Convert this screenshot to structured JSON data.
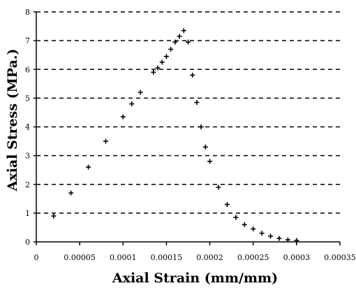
{
  "chart_data": {
    "type": "scatter",
    "title": "",
    "xlabel": "Axial Strain (mm/mm)",
    "ylabel": "Axial Stress (MPa.)",
    "xlim": [
      0,
      0.00035
    ],
    "ylim": [
      0,
      8
    ],
    "x_ticks": [
      0,
      5e-05,
      0.0001,
      0.00015,
      0.0002,
      0.00025,
      0.0003,
      0.00035
    ],
    "x_tick_labels": [
      "0",
      "0.00005",
      "0.0001",
      "0.00015",
      "0.0002",
      "0.00025",
      "0.0003",
      "0.00035"
    ],
    "y_ticks": [
      0,
      1,
      2,
      3,
      4,
      5,
      6,
      7,
      8
    ],
    "y_tick_labels": [
      "0",
      "1",
      "2",
      "3",
      "4",
      "5",
      "6",
      "7",
      "8"
    ],
    "grid": "horizontal dashed",
    "marker": "plus",
    "points": [
      {
        "x": 2e-05,
        "y": 0.9
      },
      {
        "x": 4e-05,
        "y": 1.7
      },
      {
        "x": 6e-05,
        "y": 2.6
      },
      {
        "x": 8e-05,
        "y": 3.5
      },
      {
        "x": 0.0001,
        "y": 4.35
      },
      {
        "x": 0.00011,
        "y": 4.8
      },
      {
        "x": 0.00012,
        "y": 5.2
      },
      {
        "x": 0.000135,
        "y": 5.9
      },
      {
        "x": 0.00014,
        "y": 6.05
      },
      {
        "x": 0.000145,
        "y": 6.25
      },
      {
        "x": 0.00015,
        "y": 6.45
      },
      {
        "x": 0.000155,
        "y": 6.7
      },
      {
        "x": 0.00016,
        "y": 6.95
      },
      {
        "x": 0.000165,
        "y": 7.15
      },
      {
        "x": 0.00017,
        "y": 7.35
      },
      {
        "x": 0.000175,
        "y": 6.95
      },
      {
        "x": 0.00018,
        "y": 5.8
      },
      {
        "x": 0.000185,
        "y": 4.85
      },
      {
        "x": 0.00019,
        "y": 4.0
      },
      {
        "x": 0.000195,
        "y": 3.3
      },
      {
        "x": 0.0002,
        "y": 2.8
      },
      {
        "x": 0.00021,
        "y": 1.9
      },
      {
        "x": 0.00022,
        "y": 1.3
      },
      {
        "x": 0.00023,
        "y": 0.85
      },
      {
        "x": 0.00024,
        "y": 0.6
      },
      {
        "x": 0.00025,
        "y": 0.45
      },
      {
        "x": 0.00026,
        "y": 0.3
      },
      {
        "x": 0.00027,
        "y": 0.2
      },
      {
        "x": 0.00028,
        "y": 0.12
      },
      {
        "x": 0.00029,
        "y": 0.07
      },
      {
        "x": 0.0003,
        "y": 0.05
      }
    ]
  }
}
